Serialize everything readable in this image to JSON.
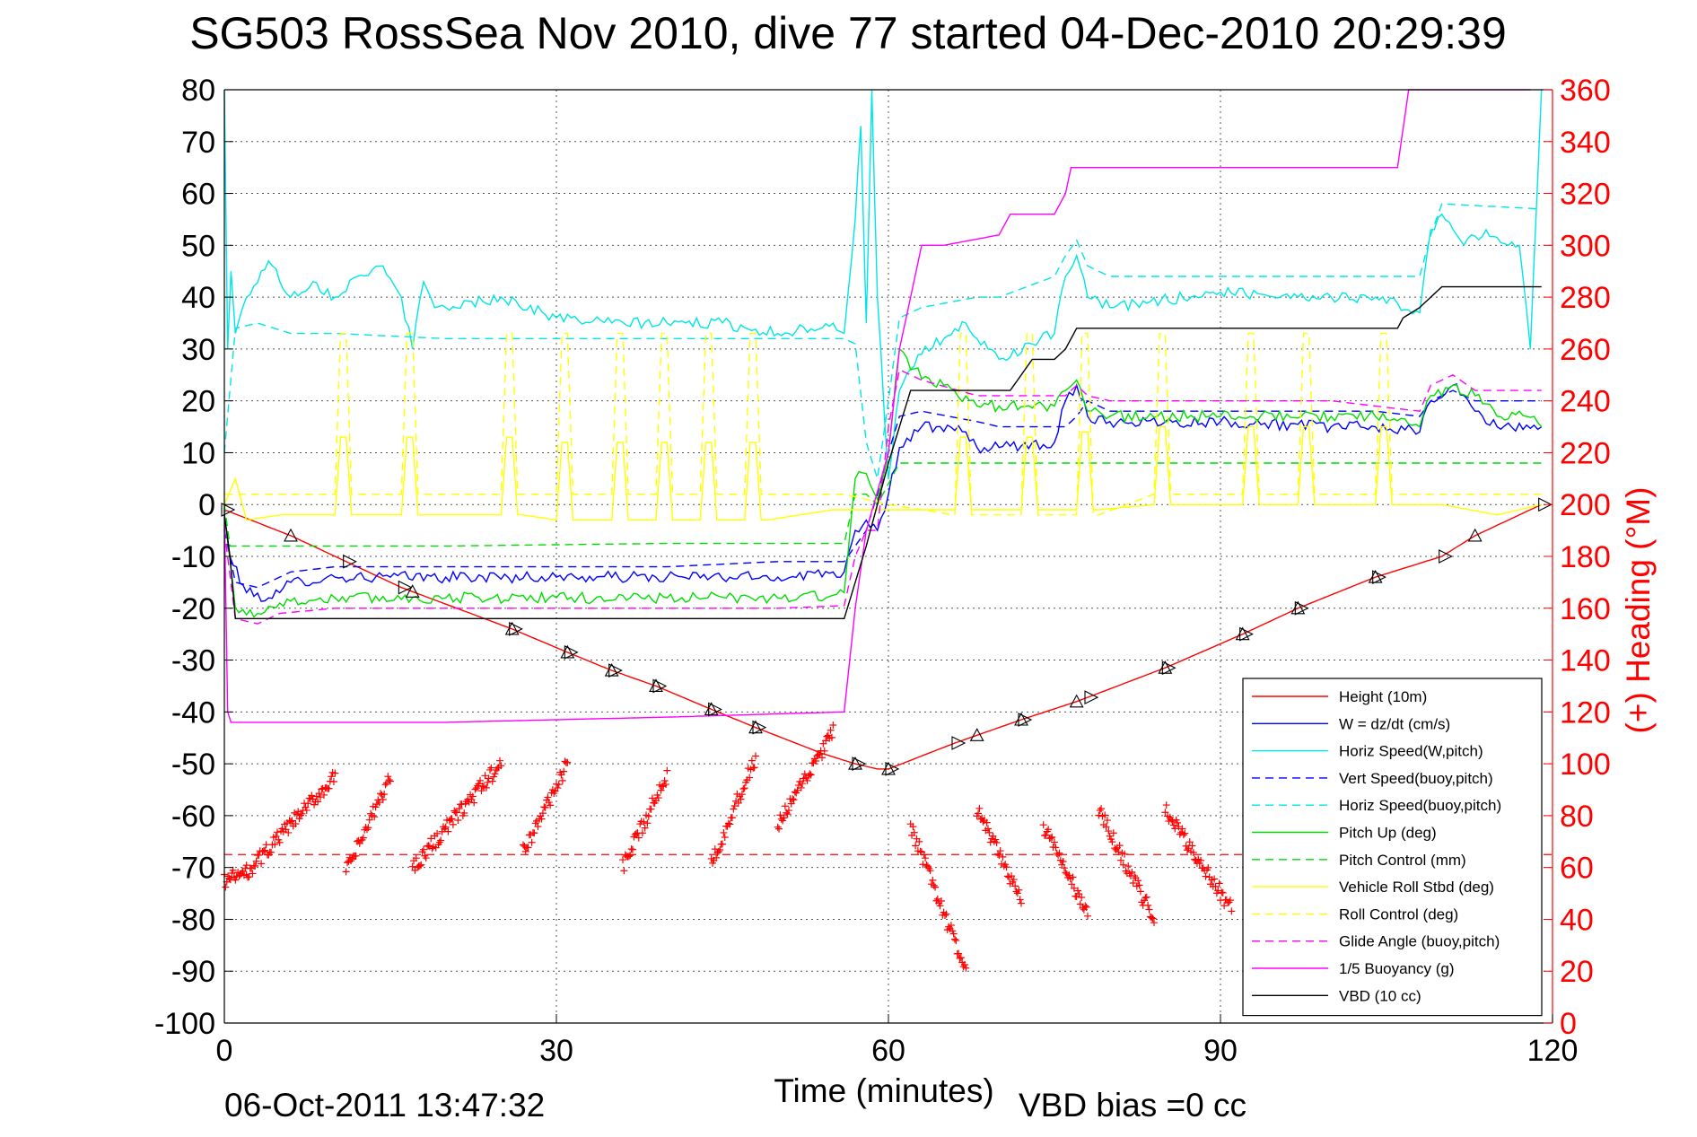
{
  "page": {
    "title": "SG503 RossSea Nov 2010, dive 77 started 04-Dec-2010 20:29:39",
    "xlabel": "Time (minutes)",
    "ylabel_right": "(+) Heading (°M)",
    "footer_date": "06-Oct-2011 13:47:32",
    "footer_vbd": "VBD bias =0 cc"
  },
  "chart_data": {
    "type": "line",
    "grid": true,
    "legend_position": "bottom-right",
    "title": "SG503 RossSea Nov 2010, dive 77 started 04-Dec-2010 20:29:39",
    "xlabel": "Time (minutes)",
    "ylabel": "",
    "ylabel_right": "(+) Heading (°M)",
    "xlim": [
      0,
      120
    ],
    "ylim": [
      -100,
      80
    ],
    "ylim_right": [
      0,
      360
    ],
    "xticks": [
      0,
      30,
      60,
      90,
      120
    ],
    "yticks": [
      -100,
      -90,
      -80,
      -70,
      -60,
      -50,
      -40,
      -30,
      -20,
      -10,
      0,
      10,
      20,
      30,
      40,
      50,
      60,
      70,
      80
    ],
    "yticks_right": [
      0,
      20,
      40,
      60,
      80,
      100,
      120,
      140,
      160,
      180,
      200,
      220,
      240,
      260,
      280,
      300,
      320,
      340,
      360
    ],
    "series": [
      {
        "name": "Height (10m)",
        "color": "#ff0000",
        "dash": "solid",
        "x": [
          0,
          6,
          11,
          16,
          26,
          31,
          35,
          39,
          44,
          48,
          54,
          57,
          59,
          60,
          66,
          72,
          77,
          85,
          92,
          97,
          104,
          110,
          113,
          119
        ],
        "y": [
          -1,
          -6,
          -11,
          -16,
          -24,
          -28.5,
          -32,
          -35,
          -39.5,
          -43,
          -48,
          -50,
          -51,
          -51,
          -46,
          -41.5,
          -38,
          -31.5,
          -25,
          -20,
          -14,
          -10,
          -6,
          0
        ]
      },
      {
        "name": "W = dz/dt (cm/s)",
        "color": "#0000ff",
        "dash": "solid",
        "x": [
          0,
          0.5,
          2,
          4,
          5,
          6,
          10,
          20,
          30,
          40,
          50,
          55,
          56,
          57,
          58,
          59,
          60,
          61,
          63,
          67,
          68,
          70,
          75,
          76,
          77,
          78,
          80,
          90,
          100,
          104,
          108,
          109,
          111,
          113,
          115,
          119
        ],
        "y": [
          -2,
          -10,
          -17,
          -18,
          -17,
          -15,
          -14,
          -14,
          -14,
          -14,
          -14,
          -13,
          -13,
          -5,
          -3,
          -5,
          2,
          11,
          15,
          14,
          11,
          11,
          12,
          20,
          23,
          17,
          16,
          16,
          15,
          15,
          14,
          20,
          23,
          18,
          15,
          15
        ]
      },
      {
        "name": "Horiz Speed(W,pitch)",
        "color": "#00e5e5",
        "dash": "solid",
        "x": [
          0,
          0.3,
          0.6,
          1,
          2,
          4,
          6,
          8,
          10,
          12,
          14,
          16,
          17,
          18,
          19,
          20,
          25,
          30,
          35,
          40,
          45,
          50,
          55,
          56,
          57,
          57.5,
          58,
          58.5,
          59,
          60,
          61,
          63,
          65,
          67,
          68,
          70,
          75,
          76,
          77,
          78,
          80,
          90,
          100,
          104,
          108,
          109,
          110,
          112,
          114,
          116,
          117,
          118,
          119
        ],
        "y": [
          80,
          30,
          45,
          33,
          40,
          47,
          40,
          43,
          40,
          44,
          46,
          40,
          30,
          43,
          38,
          38,
          40,
          36,
          35,
          35,
          35,
          33,
          35,
          33,
          55,
          73,
          35,
          80,
          40,
          5,
          22,
          29,
          32,
          35,
          32,
          28,
          33,
          44,
          48,
          40,
          38,
          41,
          40,
          40,
          37,
          53,
          56,
          50,
          53,
          50,
          50,
          30,
          80
        ]
      },
      {
        "name": "Vert Speed(buoy,pitch)",
        "color": "#0000ff",
        "dash": "dashed",
        "x": [
          0,
          1,
          3,
          6,
          10,
          20,
          30,
          40,
          50,
          55,
          56,
          57,
          58,
          59,
          60,
          61,
          63,
          68,
          70,
          76,
          77,
          78,
          80,
          90,
          100,
          104,
          108,
          109,
          111,
          113,
          119
        ],
        "y": [
          -5,
          -15,
          -16,
          -13,
          -12,
          -12,
          -12,
          -12,
          -11,
          -11,
          -11,
          -8,
          -5,
          2,
          10,
          17,
          18,
          16,
          15,
          15,
          17,
          20,
          18,
          18,
          18,
          18,
          17,
          20,
          22,
          20,
          20
        ]
      },
      {
        "name": "Horiz Speed(buoy,pitch)",
        "color": "#00e5e5",
        "dash": "dashed",
        "x": [
          0,
          1,
          3,
          6,
          10,
          20,
          30,
          40,
          50,
          55,
          56,
          57,
          58,
          59,
          60,
          61,
          63,
          68,
          70,
          75,
          76,
          77,
          78,
          80,
          90,
          100,
          104,
          108,
          109,
          110,
          119
        ],
        "y": [
          10,
          34,
          35,
          33,
          33,
          32,
          32,
          32,
          32,
          32,
          32,
          31,
          12,
          5,
          20,
          36,
          38,
          40,
          40,
          44,
          48,
          51,
          46,
          44,
          44,
          44,
          44,
          44,
          52,
          58,
          57
        ]
      },
      {
        "name": "Pitch Up (deg)",
        "color": "#00dd00",
        "dash": "solid",
        "x": [
          0,
          1,
          3,
          5,
          10,
          20,
          30,
          40,
          50,
          55,
          56,
          57,
          58,
          59,
          60,
          61,
          62,
          65,
          68,
          70,
          75,
          76,
          77,
          78,
          80,
          90,
          100,
          104,
          108,
          109,
          111,
          113,
          115,
          117,
          119
        ],
        "y": [
          -2,
          -20,
          -21,
          -19,
          -18,
          -18,
          -18,
          -18,
          -18,
          -17.5,
          -17,
          5,
          6,
          1,
          10,
          30,
          26,
          23,
          19,
          19,
          19,
          22,
          24,
          18,
          17,
          17,
          17,
          17,
          15,
          21,
          23,
          21,
          17,
          18,
          15
        ]
      },
      {
        "name": "Pitch Control (mm)",
        "color": "#00dd00",
        "dash": "dashed",
        "x": [
          0,
          0.5,
          5,
          20,
          40,
          56,
          57,
          58,
          59,
          60,
          61,
          62,
          70,
          80,
          100,
          110,
          119
        ],
        "y": [
          0,
          -8,
          -8,
          -8,
          -7.5,
          -7.5,
          2,
          2,
          0,
          4,
          8,
          8,
          8,
          8,
          8,
          8,
          8
        ]
      },
      {
        "name": "Vehicle Roll Stbd (deg)",
        "color": "#ffff00",
        "dash": "solid",
        "x": [
          0,
          1,
          2,
          5,
          10,
          10.5,
          11,
          11.5,
          12,
          16,
          16.5,
          17,
          17.5,
          18,
          25,
          25.5,
          26,
          26.5,
          27,
          30,
          30.5,
          31,
          31.5,
          32,
          35,
          35.5,
          36,
          36.5,
          37,
          39,
          39.5,
          40,
          40.5,
          41,
          43,
          43.5,
          44,
          44.5,
          45,
          47,
          47.5,
          48,
          48.5,
          49,
          55,
          56,
          60,
          61,
          66,
          66.5,
          67,
          67.5,
          68,
          72,
          72.5,
          73,
          73.5,
          74,
          77,
          77.5,
          78,
          78.5,
          79,
          84,
          84.5,
          85,
          85.5,
          86,
          92,
          92.5,
          93,
          93.5,
          94,
          97,
          97.5,
          98,
          98.5,
          99,
          104,
          104.5,
          105,
          105.5,
          106,
          110,
          115,
          119
        ],
        "y": [
          0,
          5,
          -3,
          -2,
          -2,
          13,
          13,
          -2,
          -2,
          -2,
          13,
          13,
          -2,
          -2,
          -2,
          13,
          13,
          -2,
          -2,
          -3,
          12,
          12,
          -3,
          -3,
          -3,
          12,
          12,
          -3,
          -3,
          -3,
          12,
          12,
          -3,
          -3,
          -3,
          12,
          12,
          -3,
          -3,
          -3,
          12,
          12,
          -3,
          -3,
          -1,
          -1,
          -1,
          -1,
          -1,
          13,
          13,
          -1,
          -1,
          -1,
          13,
          13,
          -1,
          -1,
          -1,
          14,
          14,
          -1,
          -1,
          0,
          15,
          15,
          0,
          0,
          0,
          15,
          15,
          0,
          0,
          0,
          15,
          15,
          0,
          0,
          0,
          15,
          15,
          0,
          0,
          0,
          -2,
          0
        ]
      },
      {
        "name": "Roll Control (deg)",
        "color": "#ffff00",
        "dash": "dashed",
        "x": [
          0,
          10,
          10.5,
          11,
          11.5,
          12,
          16,
          16.5,
          17,
          17.5,
          18,
          25,
          25.5,
          26,
          26.5,
          27,
          30,
          30.5,
          31,
          31.5,
          32,
          35,
          35.5,
          36,
          36.5,
          37,
          39,
          39.5,
          40,
          40.5,
          41,
          43,
          43.5,
          44,
          44.5,
          45,
          47,
          47.5,
          48,
          48.5,
          49,
          56,
          60,
          66,
          66.5,
          67,
          67.5,
          68,
          72,
          72.5,
          73,
          73.5,
          74,
          77,
          77.5,
          78,
          78.5,
          79,
          84,
          84.5,
          85,
          85.5,
          86,
          92,
          92.5,
          93,
          93.5,
          94,
          97,
          97.5,
          98,
          98.5,
          99,
          104,
          104.5,
          105,
          105.5,
          106,
          119
        ],
        "y": [
          2,
          2,
          33,
          33,
          2,
          2,
          2,
          33,
          33,
          2,
          2,
          2,
          33,
          33,
          2,
          2,
          2,
          33,
          33,
          2,
          2,
          2,
          33,
          33,
          2,
          2,
          2,
          33,
          33,
          2,
          2,
          2,
          33,
          33,
          2,
          2,
          2,
          33,
          33,
          2,
          2,
          2,
          0,
          -2,
          33,
          33,
          -2,
          -2,
          -2,
          33,
          33,
          -2,
          -2,
          -2,
          33,
          33,
          -2,
          -2,
          2,
          33,
          33,
          2,
          2,
          2,
          33,
          33,
          2,
          2,
          2,
          33,
          33,
          2,
          2,
          2,
          33,
          33,
          2,
          2,
          2
        ]
      },
      {
        "name": "Glide Angle (buoy,pitch)",
        "color": "#ff00ff",
        "dash": "dashed",
        "x": [
          0,
          1,
          3,
          5,
          10,
          20,
          30,
          40,
          50,
          56,
          57,
          58,
          59,
          60,
          61,
          63,
          68,
          70,
          76,
          77,
          78,
          80,
          90,
          100,
          104,
          108,
          109,
          111,
          113,
          119
        ],
        "y": [
          -5,
          -22,
          -23,
          -21,
          -20,
          -20,
          -20,
          -20,
          -20,
          -19.5,
          -10,
          -5,
          -5,
          15,
          26,
          24,
          21,
          21,
          21,
          23,
          21,
          20,
          20,
          20,
          19,
          18,
          23,
          25,
          22,
          22
        ]
      },
      {
        "name": "1/5 Buoyancy (g)",
        "color": "#ff00ff",
        "dash": "solid",
        "x": [
          0,
          0.3,
          0.6,
          20,
          40,
          56,
          57,
          58,
          60,
          61,
          63,
          65,
          70,
          71,
          75,
          76,
          76.5,
          95,
          106,
          107,
          118
        ],
        "y": [
          -1,
          -40,
          -42,
          -42,
          -41,
          -40,
          -20,
          -5,
          10,
          30,
          50,
          50,
          52,
          56,
          56,
          60,
          65,
          65,
          65,
          80,
          80
        ]
      },
      {
        "name": "VBD (10 cc)",
        "color": "#000000",
        "dash": "solid",
        "x": [
          0,
          0.5,
          1,
          56,
          57,
          58,
          59,
          60,
          62,
          70,
          71,
          72,
          73,
          75,
          76,
          77,
          80,
          106,
          106.5,
          108,
          110,
          119
        ],
        "y": [
          -2,
          -10,
          -22,
          -22,
          -15,
          -8,
          0,
          8,
          22,
          22,
          22,
          25,
          28,
          28,
          30,
          34,
          34,
          34,
          36,
          38,
          42,
          42
        ]
      }
    ],
    "heading_scatter": {
      "name": "Heading",
      "color": "#ff0000",
      "marker": "+",
      "axis": "right",
      "target": 65,
      "segments": [
        {
          "x0": 0,
          "x1": 2,
          "y0": 55,
          "y1": 58
        },
        {
          "x0": 2,
          "x1": 10,
          "y0": 58,
          "y1": 95
        },
        {
          "x0": 11,
          "x1": 15,
          "y0": 58,
          "y1": 95
        },
        {
          "x0": 17,
          "x1": 25,
          "y0": 60,
          "y1": 100
        },
        {
          "x0": 27,
          "x1": 31,
          "y0": 66,
          "y1": 100
        },
        {
          "x0": 36,
          "x1": 40,
          "y0": 60,
          "y1": 96
        },
        {
          "x0": 44,
          "x1": 48,
          "y0": 62,
          "y1": 102
        },
        {
          "x0": 50,
          "x1": 55,
          "y0": 76,
          "y1": 112
        },
        {
          "x0": 62,
          "x1": 67,
          "y0": 76,
          "y1": 20
        },
        {
          "x0": 68,
          "x1": 72,
          "y0": 82,
          "y1": 48
        },
        {
          "x0": 74,
          "x1": 78,
          "y0": 76,
          "y1": 42
        },
        {
          "x0": 79,
          "x1": 84,
          "y0": 82,
          "y1": 40
        },
        {
          "x0": 85,
          "x1": 91,
          "y0": 82,
          "y1": 44
        }
      ]
    },
    "depth_markers": {
      "up_triangles_x": [
        6,
        17,
        26,
        31,
        35,
        39,
        44,
        48,
        57,
        60,
        68,
        72,
        77,
        85,
        92,
        97,
        104,
        113
      ],
      "down_triangles_x": [
        0,
        11,
        16,
        26,
        31,
        35,
        39,
        44,
        48,
        57,
        60,
        66,
        72,
        78,
        85,
        92,
        97,
        104,
        110,
        119
      ]
    }
  }
}
